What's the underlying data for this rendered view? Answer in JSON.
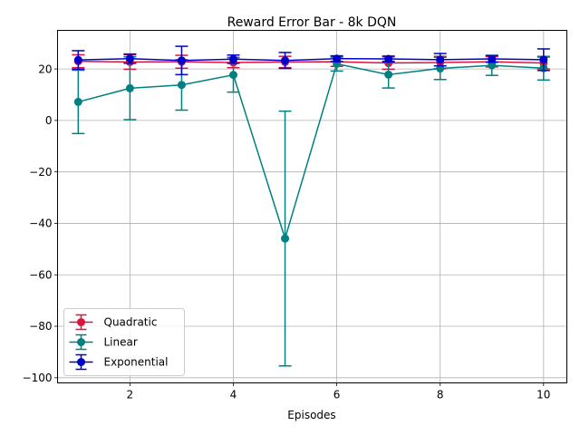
{
  "chart_data": {
    "type": "line",
    "title": "Reward Error Bar - 8k DQN",
    "xlabel": "Episodes",
    "ylabel": "",
    "xlim": [
      0.6,
      10.45
    ],
    "ylim": [
      -102,
      35
    ],
    "xticks": [
      2,
      4,
      6,
      8,
      10
    ],
    "yticks": [
      -100,
      -80,
      -60,
      -40,
      -20,
      0,
      20
    ],
    "grid": true,
    "legend_position": "lower left",
    "x": [
      1,
      2,
      3,
      4,
      5,
      6,
      7,
      8,
      9,
      10
    ],
    "series": [
      {
        "name": "Quadratic",
        "color": "#dc143c",
        "values": [
          23,
          22.7,
          22.8,
          22.5,
          22.7,
          22.8,
          22.3,
          22.5,
          22.8,
          22.3
        ],
        "errors": [
          2.5,
          2.8,
          2.5,
          2.0,
          2.2,
          1.8,
          2.4,
          2.4,
          2.0,
          2.3
        ]
      },
      {
        "name": "Linear",
        "color": "#008080",
        "values": [
          7.2,
          12.5,
          13.8,
          17.7,
          -45.9,
          22.0,
          17.8,
          20.2,
          21.4,
          20.3
        ],
        "errors": [
          12.3,
          12.2,
          9.8,
          6.7,
          49.5,
          2.8,
          5.2,
          4.3,
          3.9,
          4.6
        ]
      },
      {
        "name": "Exponential",
        "color": "#0000cd",
        "values": [
          23.5,
          24.0,
          23.3,
          23.8,
          23.3,
          24.0,
          23.9,
          23.6,
          23.9,
          23.6
        ],
        "errors": [
          3.6,
          1.8,
          5.5,
          1.6,
          3.1,
          1.1,
          1.1,
          2.4,
          1.3,
          4.2
        ]
      }
    ]
  }
}
